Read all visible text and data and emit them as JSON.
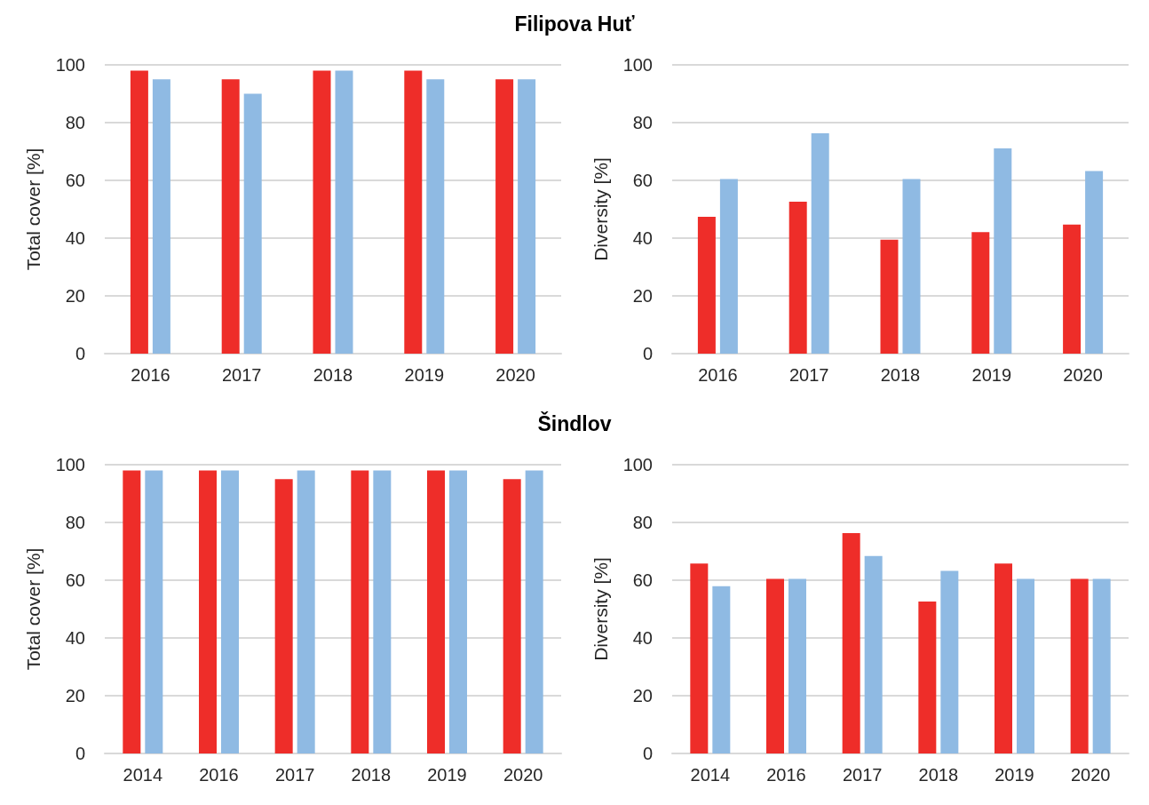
{
  "chart_data": [
    {
      "type": "bar",
      "title": "Filipova Huť",
      "ylabel": "Total cover [%]",
      "categories": [
        "2016",
        "2017",
        "2018",
        "2019",
        "2020"
      ],
      "series": [
        {
          "color": "#ee2d29",
          "values": [
            98,
            95,
            98,
            98,
            95
          ]
        },
        {
          "color": "#8fbae3",
          "values": [
            95,
            90,
            98,
            95,
            95
          ]
        }
      ],
      "ylim": [
        0,
        100
      ],
      "yticks": [
        0,
        20,
        40,
        60,
        80,
        100
      ],
      "grid": "y"
    },
    {
      "type": "bar",
      "ylabel": "Diversity [%]",
      "categories": [
        "2016",
        "2017",
        "2018",
        "2019",
        "2020"
      ],
      "series": [
        {
          "color": "#ee2d29",
          "values": [
            47.4,
            52.6,
            39.5,
            42.1,
            44.7
          ]
        },
        {
          "color": "#8fbae3",
          "values": [
            60.5,
            76.3,
            60.5,
            71.1,
            63.2
          ]
        }
      ],
      "ylim": [
        0,
        100
      ],
      "yticks": [
        0,
        20,
        40,
        60,
        80,
        100
      ],
      "grid": "y"
    },
    {
      "type": "bar",
      "title": "Šindlov",
      "ylabel": "Total cover [%]",
      "categories": [
        "2014",
        "2016",
        "2017",
        "2018",
        "2019",
        "2020"
      ],
      "series": [
        {
          "color": "#ee2d29",
          "values": [
            98,
            98,
            95,
            98,
            98,
            95
          ]
        },
        {
          "color": "#8fbae3",
          "values": [
            98,
            98,
            98,
            98,
            98,
            98
          ]
        }
      ],
      "ylim": [
        0,
        100
      ],
      "yticks": [
        0,
        20,
        40,
        60,
        80,
        100
      ],
      "grid": "y"
    },
    {
      "type": "bar",
      "ylabel": "Diversity [%]",
      "categories": [
        "2014",
        "2016",
        "2017",
        "2018",
        "2019",
        "2020"
      ],
      "series": [
        {
          "color": "#ee2d29",
          "values": [
            65.8,
            60.5,
            76.3,
            52.6,
            65.8,
            60.5
          ]
        },
        {
          "color": "#8fbae3",
          "values": [
            57.9,
            60.5,
            68.4,
            63.2,
            60.5,
            60.5
          ]
        }
      ],
      "ylim": [
        0,
        100
      ],
      "yticks": [
        0,
        20,
        40,
        60,
        80,
        100
      ],
      "grid": "y"
    }
  ]
}
